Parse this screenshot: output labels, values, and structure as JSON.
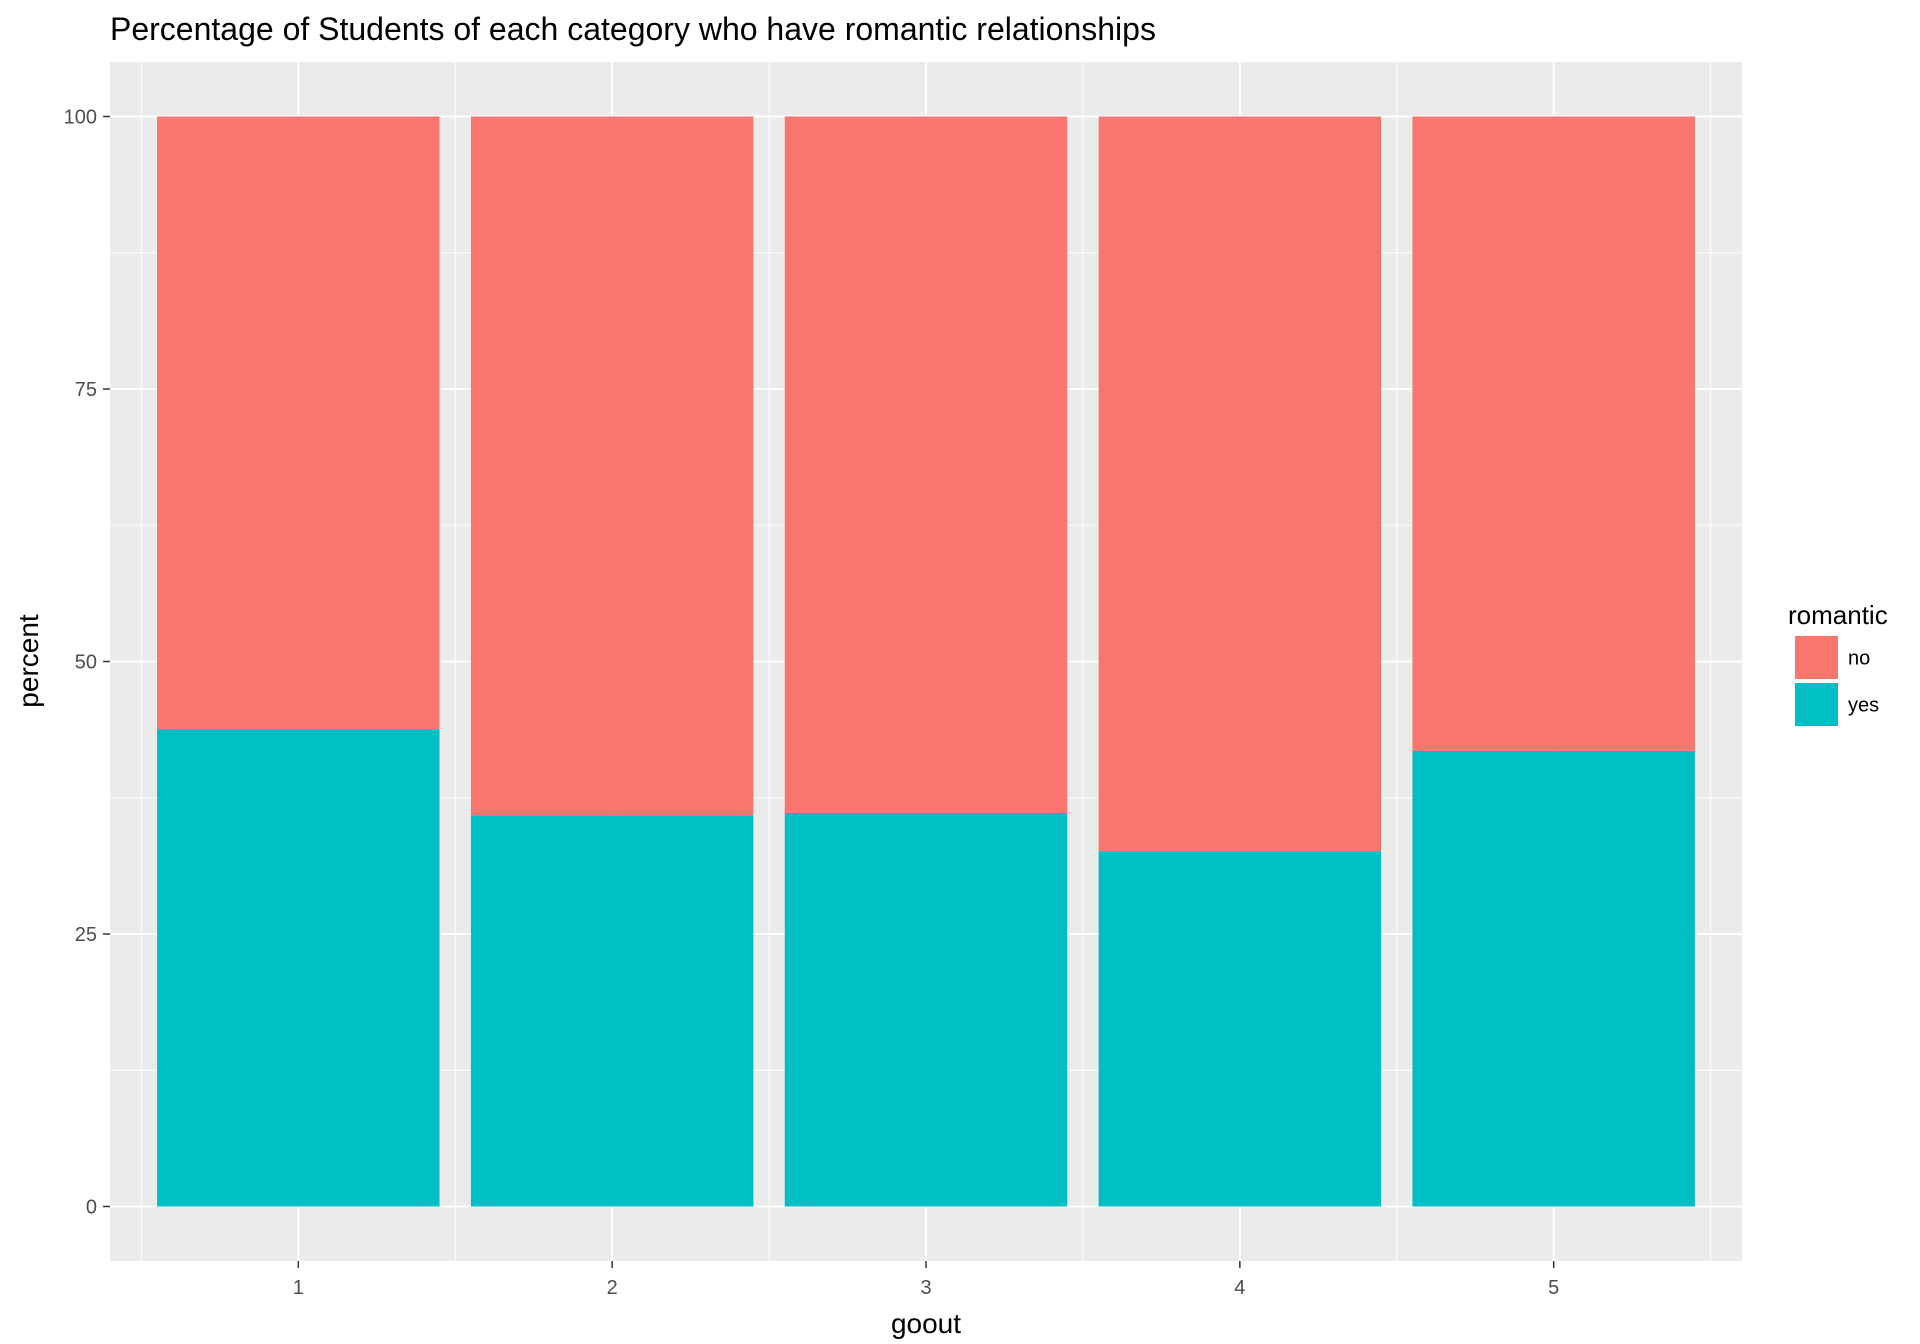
{
  "chart_data": {
    "type": "bar",
    "stacked": true,
    "title": "Percentage of Students of each category who have romantic relationships",
    "xlabel": "goout",
    "ylabel": "percent",
    "categories": [
      "1",
      "2",
      "3",
      "4",
      "5"
    ],
    "series": [
      {
        "name": "yes",
        "color": "#00BFC4",
        "values": [
          43.8,
          35.9,
          36.1,
          32.6,
          41.8
        ]
      },
      {
        "name": "no",
        "color": "#F8766D",
        "values": [
          56.2,
          64.1,
          63.9,
          67.4,
          58.2
        ]
      }
    ],
    "ylim": [
      -5,
      105
    ],
    "yticks": [
      0,
      25,
      50,
      75,
      100
    ],
    "grid": true,
    "background": "#EBEBEB",
    "legend": {
      "title": "romantic",
      "position": "right",
      "entries": [
        {
          "label": "no",
          "color": "#F8766D"
        },
        {
          "label": "yes",
          "color": "#00BFC4"
        }
      ]
    }
  }
}
